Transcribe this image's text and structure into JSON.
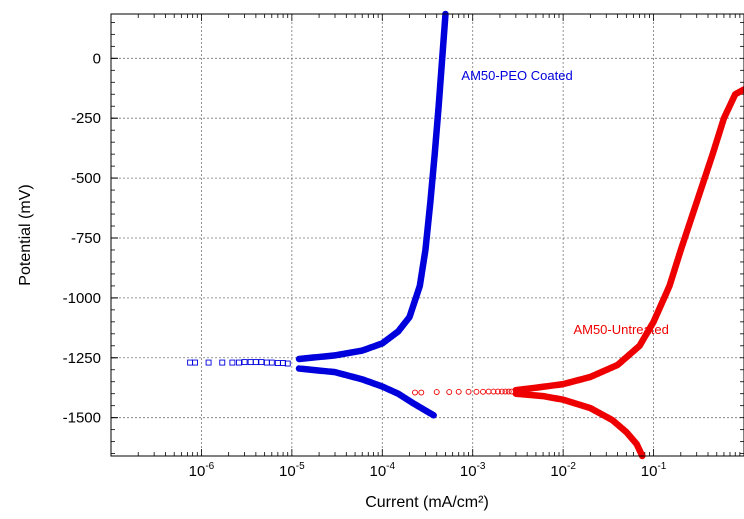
{
  "chart_data": {
    "type": "scatter",
    "title": "",
    "xlabel": "Current (mA/cm²)",
    "ylabel": "Potential (mV)",
    "x_scale": "log",
    "xlim": [
      1e-07,
      1
    ],
    "ylim": [
      -1660,
      185
    ],
    "grid": true,
    "x_tick_values": [
      1e-06,
      1e-05,
      0.0001,
      0.001,
      0.01,
      0.1
    ],
    "x_tick_labels": [
      {
        "base": "10",
        "exp": "-6"
      },
      {
        "base": "10",
        "exp": "-5"
      },
      {
        "base": "10",
        "exp": "-4"
      },
      {
        "base": "10",
        "exp": "-3"
      },
      {
        "base": "10",
        "exp": "-2"
      },
      {
        "base": "10",
        "exp": "-1"
      }
    ],
    "y_tick_values": [
      0,
      -250,
      -500,
      -750,
      -1000,
      -1250,
      -1500
    ],
    "y_tick_labels": [
      "0",
      "-250",
      "-500",
      "-750",
      "-1000",
      "-1250",
      "-1500"
    ],
    "series": [
      {
        "name": "AM50-PEO Coated",
        "color": "#0000dd",
        "marker": "square",
        "anodic": [
          [
            1.2e-05,
            -1255
          ],
          [
            3e-05,
            -1240
          ],
          [
            6e-05,
            -1220
          ],
          [
            0.0001,
            -1190
          ],
          [
            0.00015,
            -1140
          ],
          [
            0.0002,
            -1080
          ],
          [
            0.00026,
            -950
          ],
          [
            0.0003,
            -800
          ],
          [
            0.00034,
            -600
          ],
          [
            0.00038,
            -400
          ],
          [
            0.00042,
            -200
          ],
          [
            0.00046,
            0
          ],
          [
            0.0005,
            185
          ]
        ],
        "cathodic": [
          [
            1.2e-05,
            -1295
          ],
          [
            3e-05,
            -1310
          ],
          [
            6e-05,
            -1340
          ],
          [
            0.0001,
            -1370
          ],
          [
            0.00015,
            -1400
          ],
          [
            0.00022,
            -1440
          ],
          [
            0.0003,
            -1470
          ],
          [
            0.00037,
            -1490
          ]
        ],
        "sparse": [
          [
            7.5e-07,
            -1270
          ],
          [
            8.5e-07,
            -1270
          ],
          [
            1.2e-06,
            -1270
          ],
          [
            1.7e-06,
            -1270
          ],
          [
            2.2e-06,
            -1270
          ],
          [
            2.6e-06,
            -1270
          ],
          [
            3e-06,
            -1268
          ],
          [
            3.5e-06,
            -1268
          ],
          [
            4e-06,
            -1268
          ],
          [
            4.6e-06,
            -1268
          ],
          [
            5.3e-06,
            -1270
          ],
          [
            6e-06,
            -1270
          ],
          [
            7e-06,
            -1272
          ],
          [
            8e-06,
            -1272
          ],
          [
            9e-06,
            -1274
          ]
        ]
      },
      {
        "name": "AM50-Untreated",
        "color": "#ee0000",
        "marker": "circle",
        "anodic": [
          [
            0.003,
            -1385
          ],
          [
            0.005,
            -1375
          ],
          [
            0.01,
            -1360
          ],
          [
            0.02,
            -1330
          ],
          [
            0.04,
            -1280
          ],
          [
            0.07,
            -1200
          ],
          [
            0.1,
            -1100
          ],
          [
            0.15,
            -950
          ],
          [
            0.2,
            -800
          ],
          [
            0.3,
            -600
          ],
          [
            0.45,
            -400
          ],
          [
            0.6,
            -250
          ],
          [
            0.8,
            -150
          ],
          [
            1,
            -130
          ]
        ],
        "cathodic": [
          [
            0.003,
            -1400
          ],
          [
            0.006,
            -1410
          ],
          [
            0.01,
            -1425
          ],
          [
            0.02,
            -1460
          ],
          [
            0.035,
            -1510
          ],
          [
            0.05,
            -1560
          ],
          [
            0.065,
            -1610
          ],
          [
            0.075,
            -1660
          ]
        ],
        "sparse": [
          [
            0.00023,
            -1395
          ],
          [
            0.00027,
            -1395
          ],
          [
            0.0004,
            -1393
          ],
          [
            0.00055,
            -1393
          ],
          [
            0.0007,
            -1392
          ],
          [
            0.0009,
            -1392
          ],
          [
            0.0011,
            -1392
          ],
          [
            0.0013,
            -1392
          ],
          [
            0.0015,
            -1391
          ],
          [
            0.0017,
            -1391
          ],
          [
            0.0019,
            -1391
          ],
          [
            0.0021,
            -1391
          ],
          [
            0.0023,
            -1391
          ],
          [
            0.0025,
            -1391
          ],
          [
            0.0027,
            -1391
          ]
        ]
      }
    ],
    "annotations": [
      {
        "text": "AM50-PEO Coated",
        "x": 0.00075,
        "y": -90,
        "color": "#0000dd"
      },
      {
        "text": "AM50-Untreated",
        "x": 0.013,
        "y": -1150,
        "color": "#ee0000"
      }
    ]
  }
}
